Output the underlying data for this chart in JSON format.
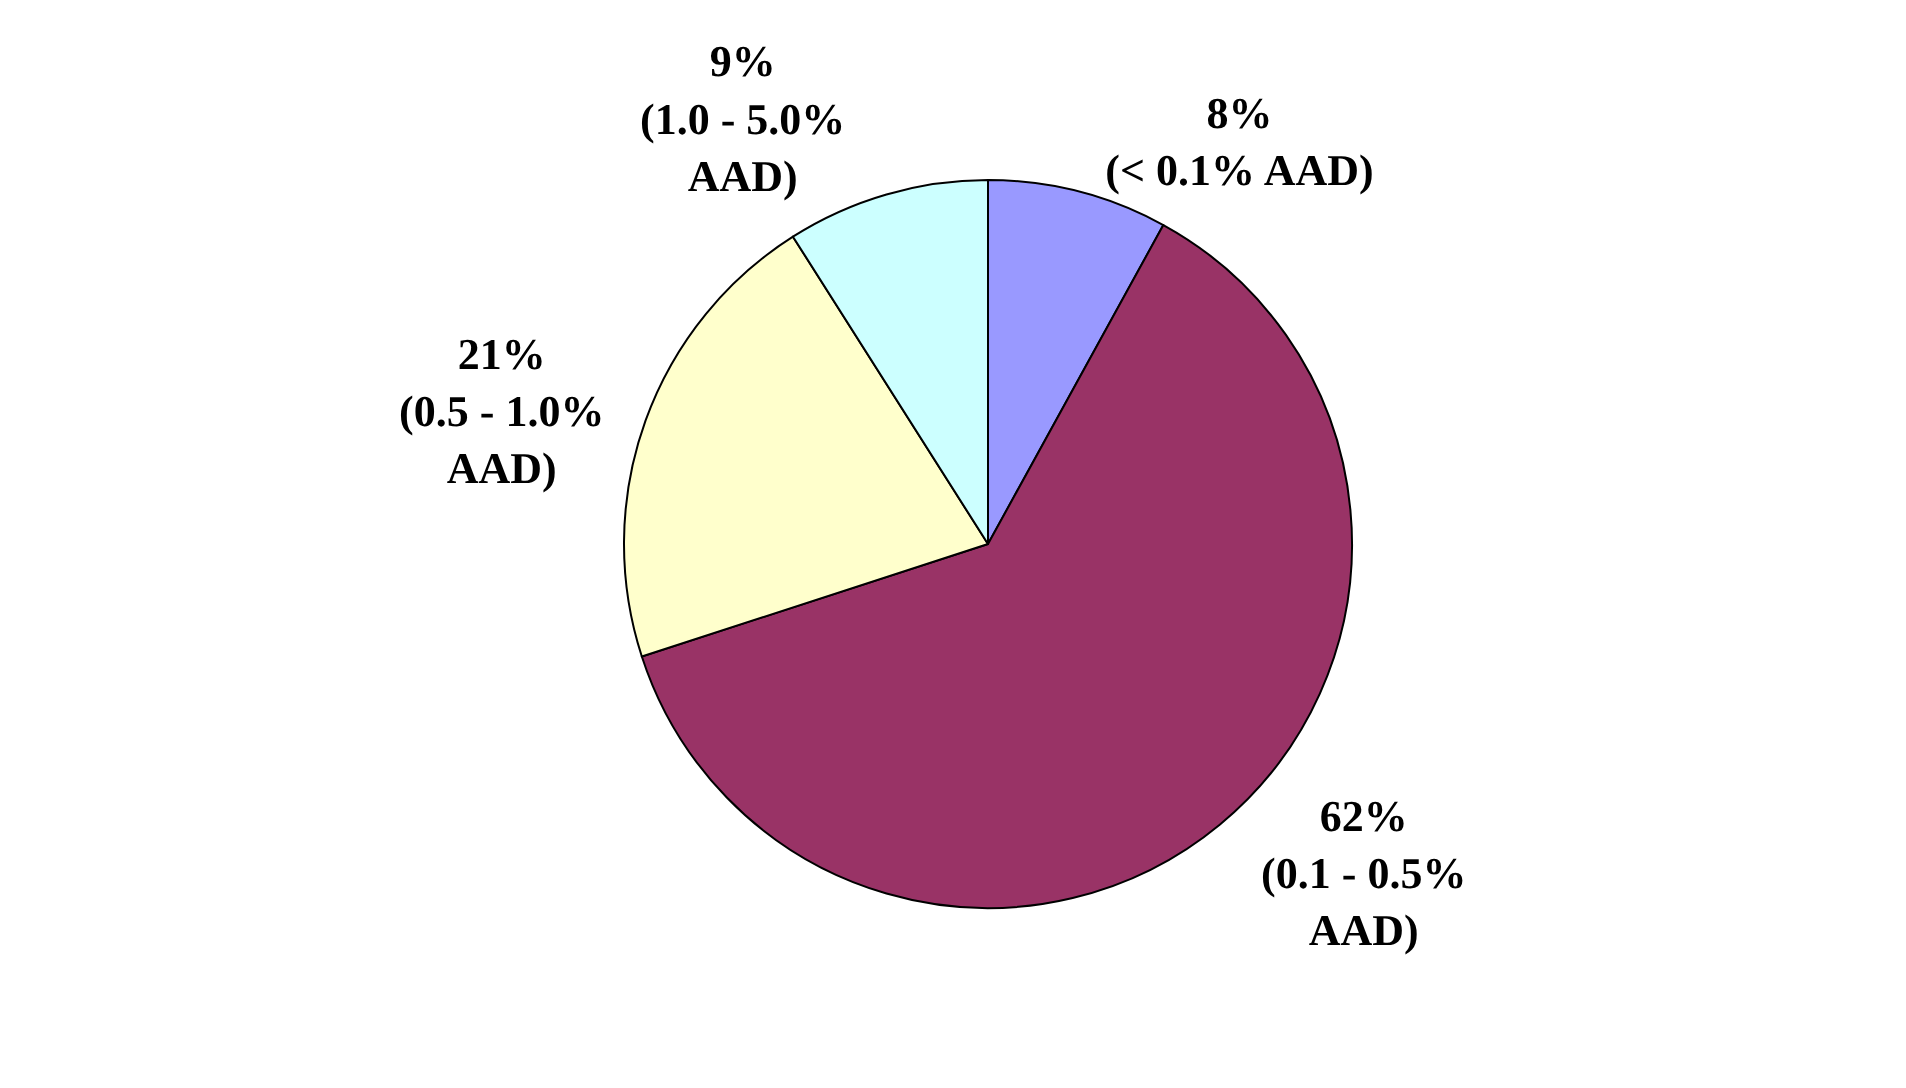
{
  "chart_data": {
    "type": "pie",
    "categories": [
      "(< 0.1% AAD)",
      "(0.1 - 0.5% AAD)",
      "(0.5 - 1.0% AAD)",
      "(1.0 - 5.0% AAD)"
    ],
    "values": [
      8,
      62,
      21,
      9
    ],
    "value_labels": [
      "8%",
      "62%",
      "21%",
      "9%"
    ],
    "colors": [
      "#9999ff",
      "#993366",
      "#ffffcc",
      "#ccffff"
    ],
    "legend": false
  }
}
